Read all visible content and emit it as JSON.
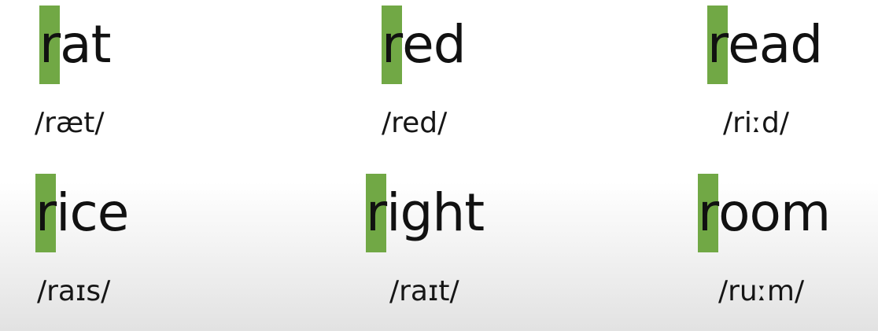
{
  "cards": [
    {
      "first": "r",
      "rest": "at",
      "ipa": "/ræt/"
    },
    {
      "first": "r",
      "rest": "ed",
      "ipa": "/red/"
    },
    {
      "first": "r",
      "rest": "ead",
      "ipa": "/riːd/"
    },
    {
      "first": "r",
      "rest": "ice",
      "ipa": "/raɪs/"
    },
    {
      "first": "r",
      "rest": "ight",
      "ipa": "/raɪt/"
    },
    {
      "first": "r",
      "rest": "oom",
      "ipa": "/ruːm/"
    }
  ],
  "colors": {
    "highlight": "#71a845",
    "text": "#111111"
  }
}
